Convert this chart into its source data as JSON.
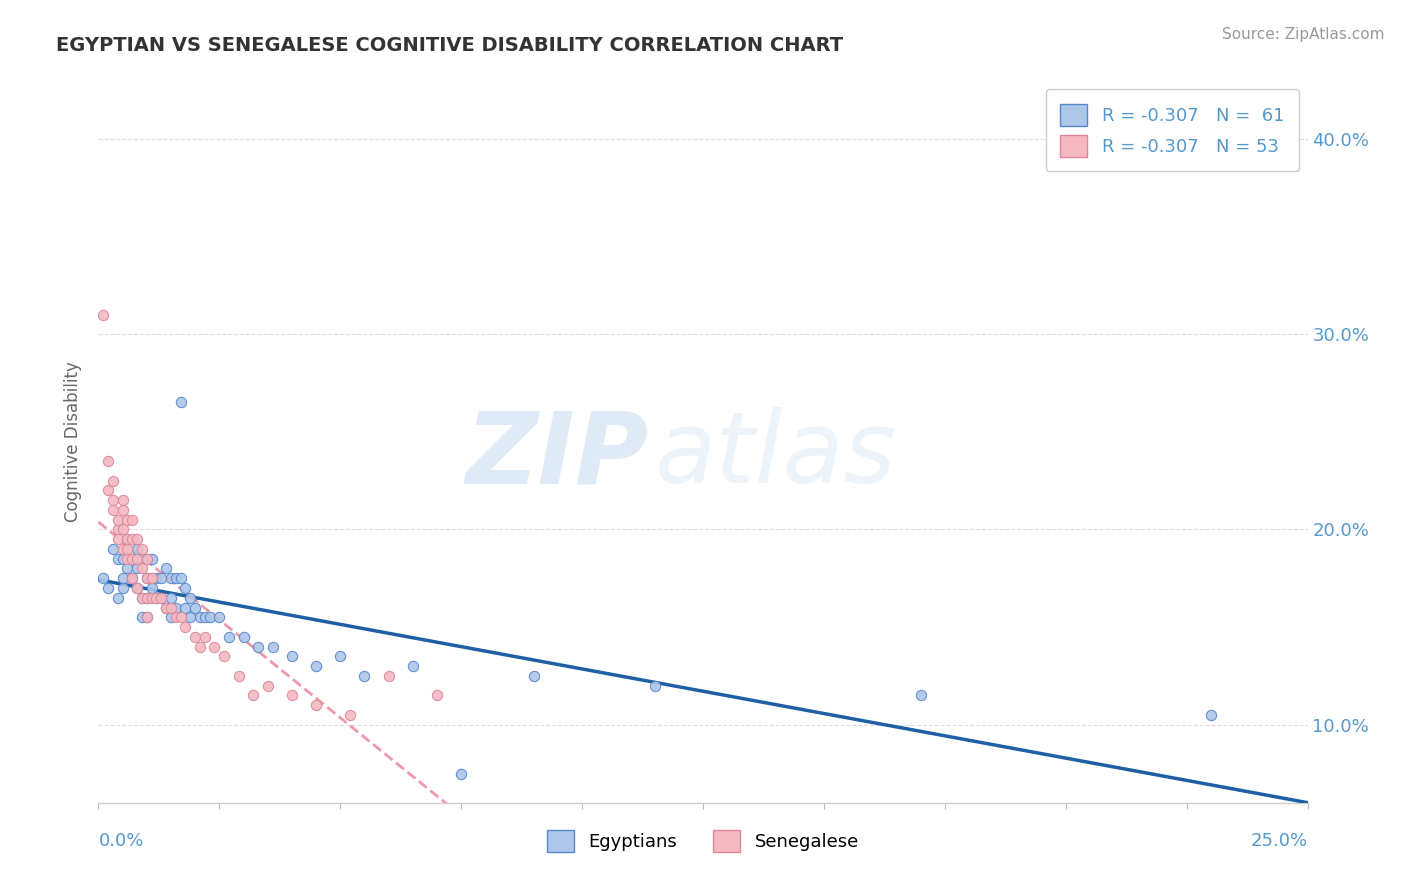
{
  "title": "EGYPTIAN VS SENEGALESE COGNITIVE DISABILITY CORRELATION CHART",
  "source": "Source: ZipAtlas.com",
  "ylabel": "Cognitive Disability",
  "right_ytick_labels": [
    "10.0%",
    "20.0%",
    "30.0%",
    "40.0%"
  ],
  "right_ytick_values": [
    0.1,
    0.2,
    0.3,
    0.4
  ],
  "xlim": [
    0.0,
    0.25
  ],
  "ylim": [
    0.06,
    0.43
  ],
  "egyptian_color": "#aec6e8",
  "senegalese_color": "#f4b8c1",
  "egyptian_edge_color": "#5588cc",
  "senegalese_edge_color": "#dd8899",
  "egyptian_line_color": "#1f5fa6",
  "senegalese_line_color": "#ee99aa",
  "legend_r_egyptian": "R = -0.307",
  "legend_n_egyptian": "N =  61",
  "legend_r_senegalese": "R = -0.307",
  "legend_n_senegalese": "N = 53",
  "legend_label_egyptian": "Egyptians",
  "legend_label_senegalese": "Senegalese",
  "watermark_zip": "ZIP",
  "watermark_atlas": "atlas",
  "background_color": "#ffffff",
  "grid_color": "#dddddd",
  "title_color": "#333333",
  "axis_label_color": "#5599cc",
  "egyptian_x": [
    0.001,
    0.002,
    0.003,
    0.004,
    0.004,
    0.005,
    0.005,
    0.005,
    0.006,
    0.006,
    0.007,
    0.007,
    0.008,
    0.008,
    0.008,
    0.009,
    0.009,
    0.009,
    0.01,
    0.01,
    0.01,
    0.01,
    0.011,
    0.011,
    0.011,
    0.012,
    0.012,
    0.013,
    0.013,
    0.014,
    0.014,
    0.015,
    0.015,
    0.015,
    0.016,
    0.016,
    0.017,
    0.017,
    0.018,
    0.018,
    0.019,
    0.019,
    0.02,
    0.021,
    0.022,
    0.023,
    0.025,
    0.027,
    0.03,
    0.033,
    0.036,
    0.04,
    0.045,
    0.05,
    0.055,
    0.065,
    0.075,
    0.09,
    0.115,
    0.17,
    0.23
  ],
  "egyptian_y": [
    0.175,
    0.17,
    0.19,
    0.185,
    0.165,
    0.185,
    0.17,
    0.175,
    0.195,
    0.18,
    0.175,
    0.185,
    0.19,
    0.18,
    0.17,
    0.185,
    0.165,
    0.155,
    0.185,
    0.175,
    0.165,
    0.155,
    0.185,
    0.175,
    0.17,
    0.175,
    0.165,
    0.175,
    0.165,
    0.18,
    0.16,
    0.175,
    0.165,
    0.155,
    0.175,
    0.16,
    0.265,
    0.175,
    0.17,
    0.16,
    0.165,
    0.155,
    0.16,
    0.155,
    0.155,
    0.155,
    0.155,
    0.145,
    0.145,
    0.14,
    0.14,
    0.135,
    0.13,
    0.135,
    0.125,
    0.13,
    0.075,
    0.125,
    0.12,
    0.115,
    0.105
  ],
  "senegalese_x": [
    0.001,
    0.002,
    0.002,
    0.003,
    0.003,
    0.003,
    0.004,
    0.004,
    0.004,
    0.005,
    0.005,
    0.005,
    0.005,
    0.006,
    0.006,
    0.006,
    0.006,
    0.007,
    0.007,
    0.007,
    0.007,
    0.008,
    0.008,
    0.008,
    0.009,
    0.009,
    0.009,
    0.01,
    0.01,
    0.01,
    0.01,
    0.011,
    0.011,
    0.012,
    0.013,
    0.014,
    0.015,
    0.016,
    0.017,
    0.018,
    0.02,
    0.021,
    0.022,
    0.024,
    0.026,
    0.029,
    0.032,
    0.035,
    0.04,
    0.045,
    0.052,
    0.06,
    0.07
  ],
  "senegalese_y": [
    0.31,
    0.22,
    0.235,
    0.215,
    0.225,
    0.21,
    0.2,
    0.205,
    0.195,
    0.215,
    0.21,
    0.19,
    0.2,
    0.205,
    0.195,
    0.185,
    0.19,
    0.205,
    0.195,
    0.185,
    0.175,
    0.195,
    0.185,
    0.17,
    0.19,
    0.18,
    0.165,
    0.185,
    0.175,
    0.165,
    0.155,
    0.175,
    0.165,
    0.165,
    0.165,
    0.16,
    0.16,
    0.155,
    0.155,
    0.15,
    0.145,
    0.14,
    0.145,
    0.14,
    0.135,
    0.125,
    0.115,
    0.12,
    0.115,
    0.11,
    0.105,
    0.125,
    0.115
  ]
}
